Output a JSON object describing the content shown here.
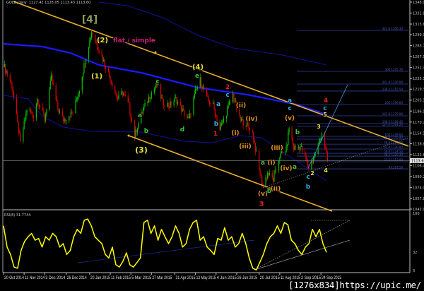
{
  "header": {
    "symbol": "GOLD,Daily",
    "ohlc": "1127.42 1128.05 1113.43 1113.60"
  },
  "rsi_header": "RSI(8) 31.7744",
  "watermark": "[1276x834]https://upic.me/",
  "colors": {
    "background": "#000000",
    "bull": "#00c800",
    "bear": "#e00000",
    "channel": "#e8b030",
    "ma": "#1a1aff",
    "ma_band": "#1010a0",
    "fib": "#3040a0",
    "rsi": "#ffff00"
  },
  "chart_data": [
    {
      "type": "candlestick",
      "title": "",
      "price_axis_labels": [
        "1348.05",
        "1331.85",
        "1315.65",
        "1299.90",
        "1283.70",
        "1267.50",
        "1251.30",
        "1235.10",
        "1219.35",
        "1203.15",
        "1186.95",
        "1170.75",
        "1154.55",
        "1138.80",
        "1122.60",
        "1106.40",
        "1090.20",
        "1074.00",
        "1057.80",
        "1042.05"
      ],
      "current_price": "1113.60",
      "ylim": [
        1042.05,
        1348.05
      ],
      "date_axis_labels": [
        "20 Oct 2014",
        "11 Nov 2014",
        "3 Dec 2014",
        "26 Dec 2014",
        "20 Jan 2015",
        "11 Feb 2015",
        "5 Mar 2015",
        "27 Mar 2015",
        "21 Apr 2015",
        "13 May 2015",
        "4 Jun 2015",
        "26 Jun 2015",
        "20 Jul 2015",
        "11 Aug 2015",
        "2 Sep 2015",
        "24 Sep 2015"
      ],
      "price_path": [
        [
          "2014-10-21",
          1252
        ],
        [
          "2014-10-29",
          1225
        ],
        [
          "2014-11-07",
          1139
        ],
        [
          "2014-11-14",
          1190
        ],
        [
          "2014-11-21",
          1180
        ],
        [
          "2014-11-25",
          1205
        ],
        [
          "2014-12-03",
          1175
        ],
        [
          "2014-12-10",
          1236
        ],
        [
          "2014-12-17",
          1190
        ],
        [
          "2014-12-23",
          1174
        ],
        [
          "2015-01-02",
          1185
        ],
        [
          "2015-01-09",
          1220
        ],
        [
          "2015-01-16",
          1268
        ],
        [
          "2015-01-22",
          1304
        ],
        [
          "2015-01-28",
          1285
        ],
        [
          "2015-02-02",
          1268
        ],
        [
          "2015-02-11",
          1236
        ],
        [
          "2015-02-19",
          1205
        ],
        [
          "2015-02-24",
          1215
        ],
        [
          "2015-03-03",
          1195
        ],
        [
          "2015-03-09",
          1150
        ],
        [
          "2015-03-12",
          1165
        ],
        [
          "2015-03-17",
          1185
        ],
        [
          "2015-03-25",
          1210
        ],
        [
          "2015-04-02",
          1226
        ],
        [
          "2015-04-08",
          1200
        ],
        [
          "2015-04-15",
          1195
        ],
        [
          "2015-04-22",
          1205
        ],
        [
          "2015-04-30",
          1185
        ],
        [
          "2015-05-06",
          1174
        ],
        [
          "2015-05-13",
          1215
        ],
        [
          "2015-05-18",
          1233
        ],
        [
          "2015-05-25",
          1205
        ],
        [
          "2015-06-01",
          1195
        ],
        [
          "2015-06-08",
          1160
        ],
        [
          "2015-06-15",
          1185
        ],
        [
          "2015-06-22",
          1212
        ],
        [
          "2015-06-29",
          1174
        ],
        [
          "2015-07-06",
          1168
        ],
        [
          "2015-07-13",
          1155
        ],
        [
          "2015-07-20",
          1100
        ],
        [
          "2015-07-24",
          1077
        ],
        [
          "2015-07-29",
          1095
        ],
        [
          "2015-08-04",
          1085
        ],
        [
          "2015-08-11",
          1121
        ],
        [
          "2015-08-18",
          1130
        ],
        [
          "2015-08-21",
          1163
        ],
        [
          "2015-08-26",
          1132
        ],
        [
          "2015-09-02",
          1135
        ],
        [
          "2015-09-08",
          1115
        ],
        [
          "2015-09-11",
          1103
        ],
        [
          "2015-09-16",
          1118
        ],
        [
          "2015-09-21",
          1135
        ],
        [
          "2015-09-25",
          1156
        ],
        [
          "2015-09-29",
          1128
        ],
        [
          "2015-10-01",
          1113.6
        ]
      ],
      "fib_levels": [
        "423.6 1306.30",
        "300 1245.70",
        "261.8 1226.90",
        "238.2 1216.50",
        "200 1196.60",
        "161.8 1179.90",
        "138.2 1168.40",
        "127.2 1164.20",
        "100 1149.60",
        "88.6 1145.40",
        "78.6 1138.00",
        "61.8 1130.80",
        "50.0 1124.50",
        "38.2 1120.30",
        "23.6 1112.00",
        "0 1101.50"
      ],
      "wave_labels": [
        {
          "text": "[4]",
          "color": "#8c9a5a"
        },
        {
          "text": "(2)",
          "color": "#e8e040"
        },
        {
          "text": "flat / simple",
          "color": "#c8207a"
        },
        {
          "text": "(1)",
          "color": "#e8e040"
        },
        {
          "text": "(3)",
          "color": "#e8e040"
        },
        {
          "text": "(4)",
          "color": "#e8e040"
        },
        {
          "text": "e",
          "color": "#40c040"
        },
        {
          "text": "c",
          "color": "#40c040"
        },
        {
          "text": "a",
          "color": "#40c040"
        },
        {
          "text": "b",
          "color": "#40c040"
        },
        {
          "text": "d",
          "color": "#40c040"
        },
        {
          "text": "2",
          "color": "#e02020"
        },
        {
          "text": "c",
          "color": "#30b0e0"
        },
        {
          "text": "a",
          "color": "#30b0e0"
        },
        {
          "text": "b",
          "color": "#30b0e0"
        },
        {
          "text": "1",
          "color": "#e02020"
        },
        {
          "text": "(ii)",
          "color": "#e09020"
        },
        {
          "text": "(i)",
          "color": "#e09020"
        },
        {
          "text": "(iv)",
          "color": "#e09020"
        },
        {
          "text": "(iii)",
          "color": "#e09020"
        },
        {
          "text": "a",
          "color": "#40c040"
        },
        {
          "text": "(i)",
          "color": "#e09020"
        },
        {
          "text": "(iii)",
          "color": "#e09020"
        },
        {
          "text": "(iv)",
          "color": "#e09020"
        },
        {
          "text": "a",
          "color": "#40c040"
        },
        {
          "text": "(v)",
          "color": "#e09020"
        },
        {
          "text": "(ii)",
          "color": "#e09020"
        },
        {
          "text": "b",
          "color": "#40c040"
        },
        {
          "text": "3",
          "color": "#e02020"
        },
        {
          "text": "(v)",
          "color": "#e09020"
        },
        {
          "text": "b",
          "color": "#40c040"
        },
        {
          "text": "a",
          "color": "#30b0e0"
        },
        {
          "text": "c",
          "color": "#30b0e0"
        },
        {
          "text": "4",
          "color": "#e02020"
        },
        {
          "text": "c",
          "color": "#30b0e0"
        },
        {
          "text": "5",
          "color": "#e8e0a0"
        },
        {
          "text": "3",
          "color": "#e8e040"
        },
        {
          "text": "2",
          "color": "#e8e040"
        },
        {
          "text": "c",
          "color": "#30b0e0"
        },
        {
          "text": "b",
          "color": "#30b0e0"
        },
        {
          "text": "4",
          "color": "#e8e040"
        }
      ]
    },
    {
      "type": "line",
      "title": "RSI(8) 31.7744",
      "ylim": [
        0,
        100
      ],
      "y_axis_labels": [
        "100",
        "32",
        "0"
      ],
      "x_range": [
        "2014-10-20",
        "2015-10-01"
      ],
      "values": [
        78,
        41,
        28,
        6,
        4,
        35,
        51,
        59,
        65,
        53,
        56,
        41,
        59,
        53,
        65,
        59,
        41,
        47,
        28,
        35,
        59,
        72,
        65,
        88,
        90,
        78,
        59,
        53,
        47,
        28,
        22,
        41,
        10,
        6,
        16,
        31,
        10,
        6,
        14,
        22,
        84,
        88,
        65,
        78,
        53,
        72,
        59,
        47,
        59,
        78,
        65,
        41,
        47,
        72,
        84,
        88,
        53,
        59,
        41,
        35,
        28,
        56,
        53,
        75,
        53,
        59,
        41,
        47,
        65,
        47,
        22,
        4,
        1,
        14,
        28,
        47,
        59,
        65,
        78,
        65,
        84,
        80,
        53,
        47,
        35,
        28,
        41,
        47,
        72,
        59,
        72,
        47,
        31.77
      ]
    }
  ]
}
